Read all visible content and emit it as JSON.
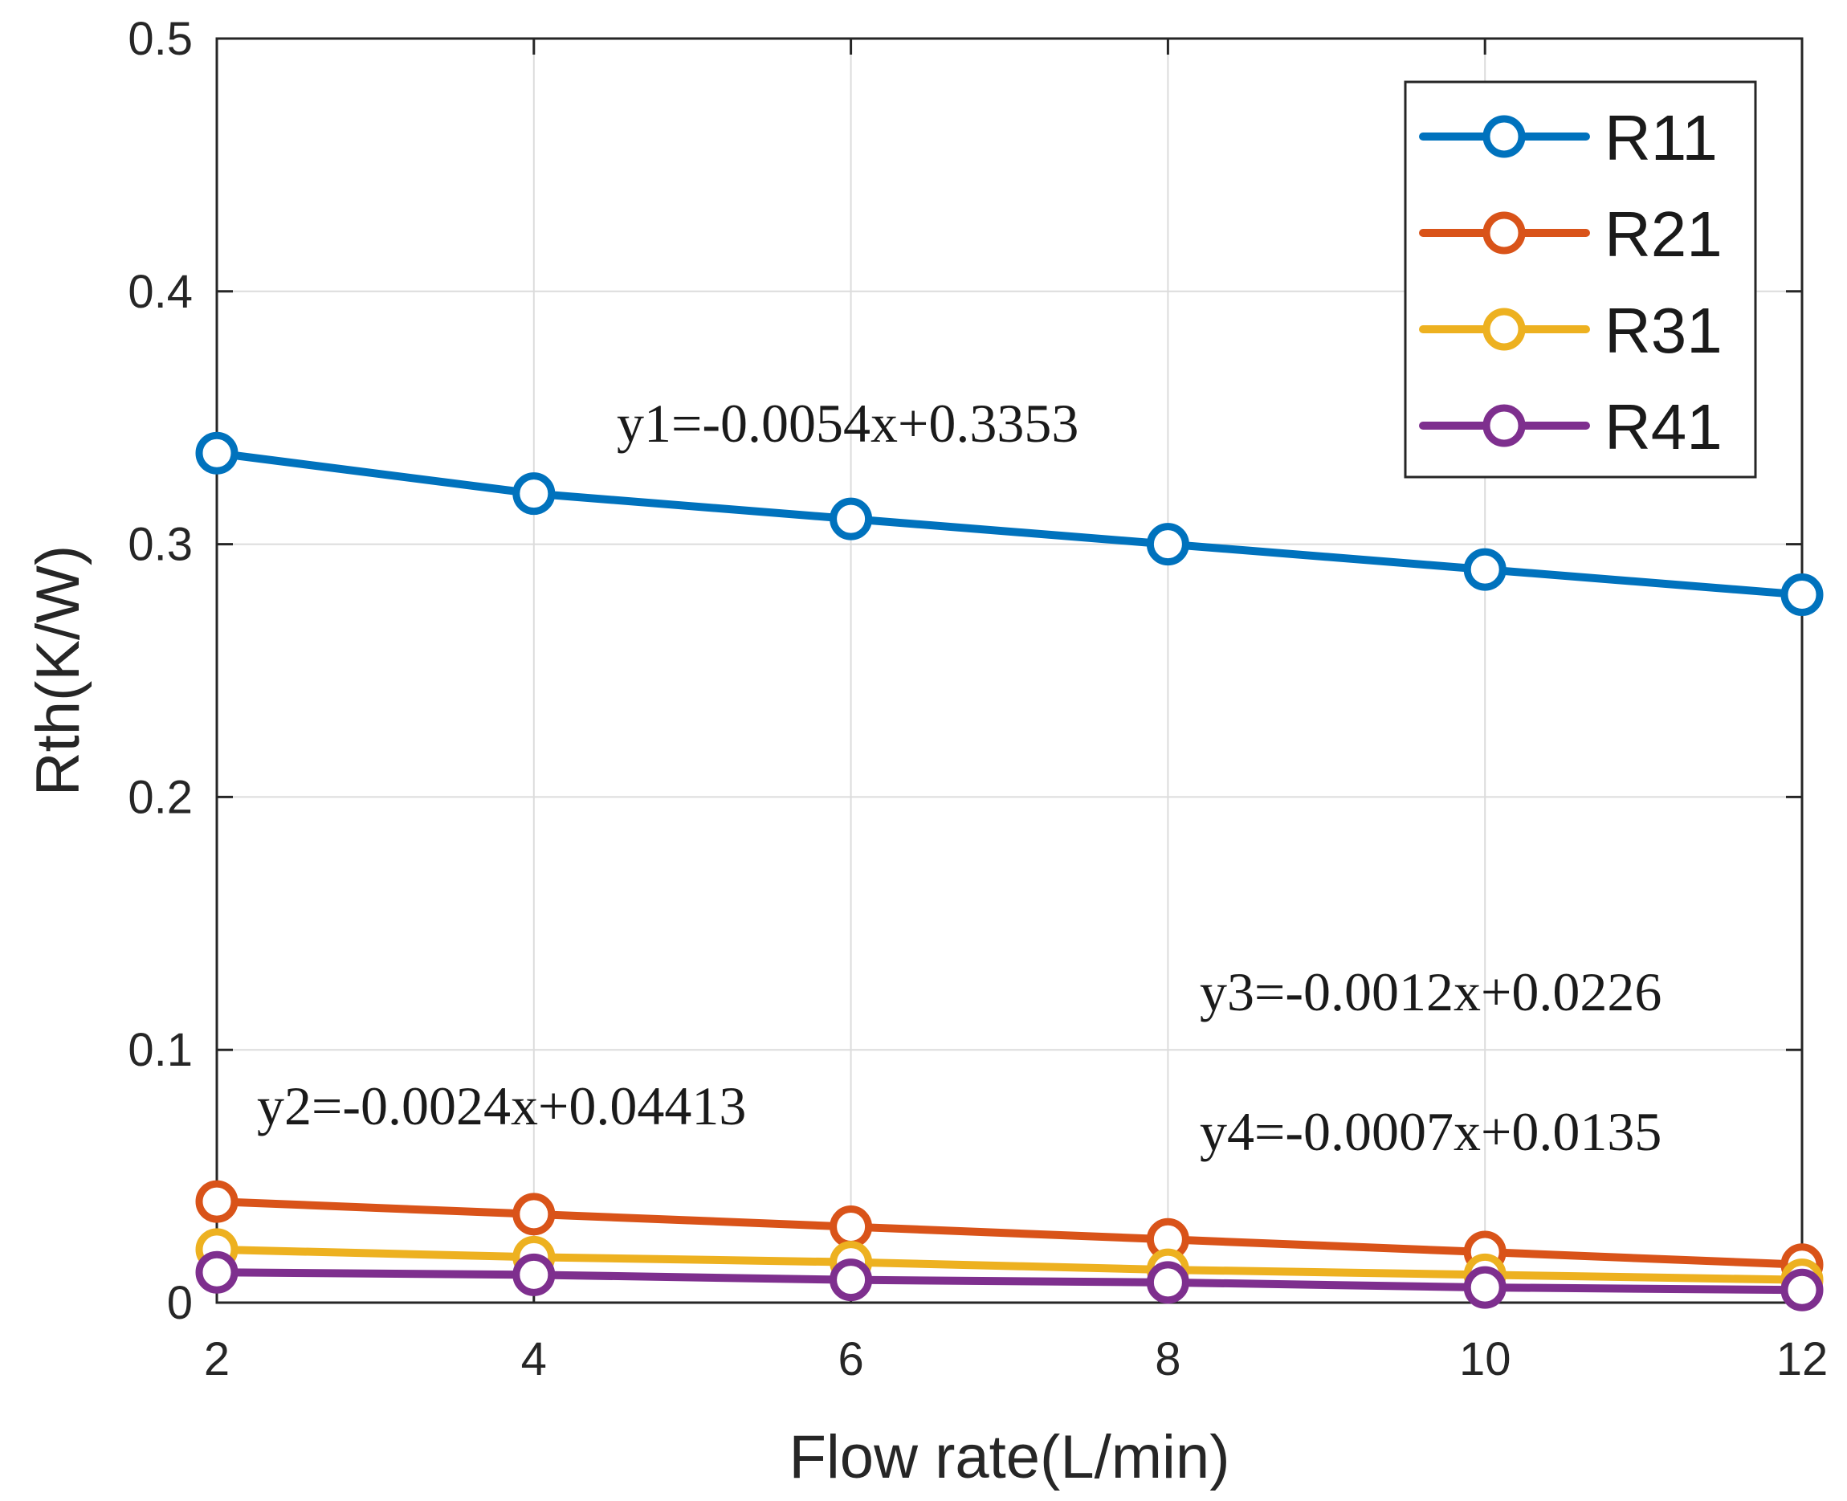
{
  "chart_data": {
    "type": "line",
    "title": "",
    "xlabel": "Flow rate(L/min)",
    "ylabel": "Rth(K/W)",
    "x": [
      2,
      4,
      6,
      8,
      10,
      12
    ],
    "xlim": [
      2,
      12
    ],
    "ylim": [
      0,
      0.5
    ],
    "xticks": [
      2,
      4,
      6,
      8,
      10,
      12
    ],
    "xtick_labels": [
      "2",
      "4",
      "6",
      "8",
      "10",
      "12"
    ],
    "yticks": [
      0,
      0.1,
      0.2,
      0.3,
      0.4,
      0.5
    ],
    "ytick_labels": [
      "0",
      "0.1",
      "0.2",
      "0.3",
      "0.4",
      "0.5"
    ],
    "grid": true,
    "legend_position": "top-right",
    "series": [
      {
        "name": "R11",
        "color": "#0072BD",
        "values": [
          0.336,
          0.32,
          0.31,
          0.3,
          0.29,
          0.28
        ]
      },
      {
        "name": "R21",
        "color": "#D95319",
        "values": [
          0.04,
          0.035,
          0.03,
          0.025,
          0.02,
          0.015
        ]
      },
      {
        "name": "R31",
        "color": "#EDB120",
        "values": [
          0.021,
          0.018,
          0.016,
          0.013,
          0.011,
          0.009
        ]
      },
      {
        "name": "R41",
        "color": "#7E2F8E",
        "values": [
          0.012,
          0.011,
          0.009,
          0.008,
          0.006,
          0.005
        ]
      }
    ],
    "annotations": [
      {
        "text": "y1=-0.0054x+0.3353"
      },
      {
        "text": "y2=-0.0024x+0.04413"
      },
      {
        "text": "y3=-0.0012x+0.0226"
      },
      {
        "text": "y4=-0.0007x+0.0135"
      }
    ]
  }
}
